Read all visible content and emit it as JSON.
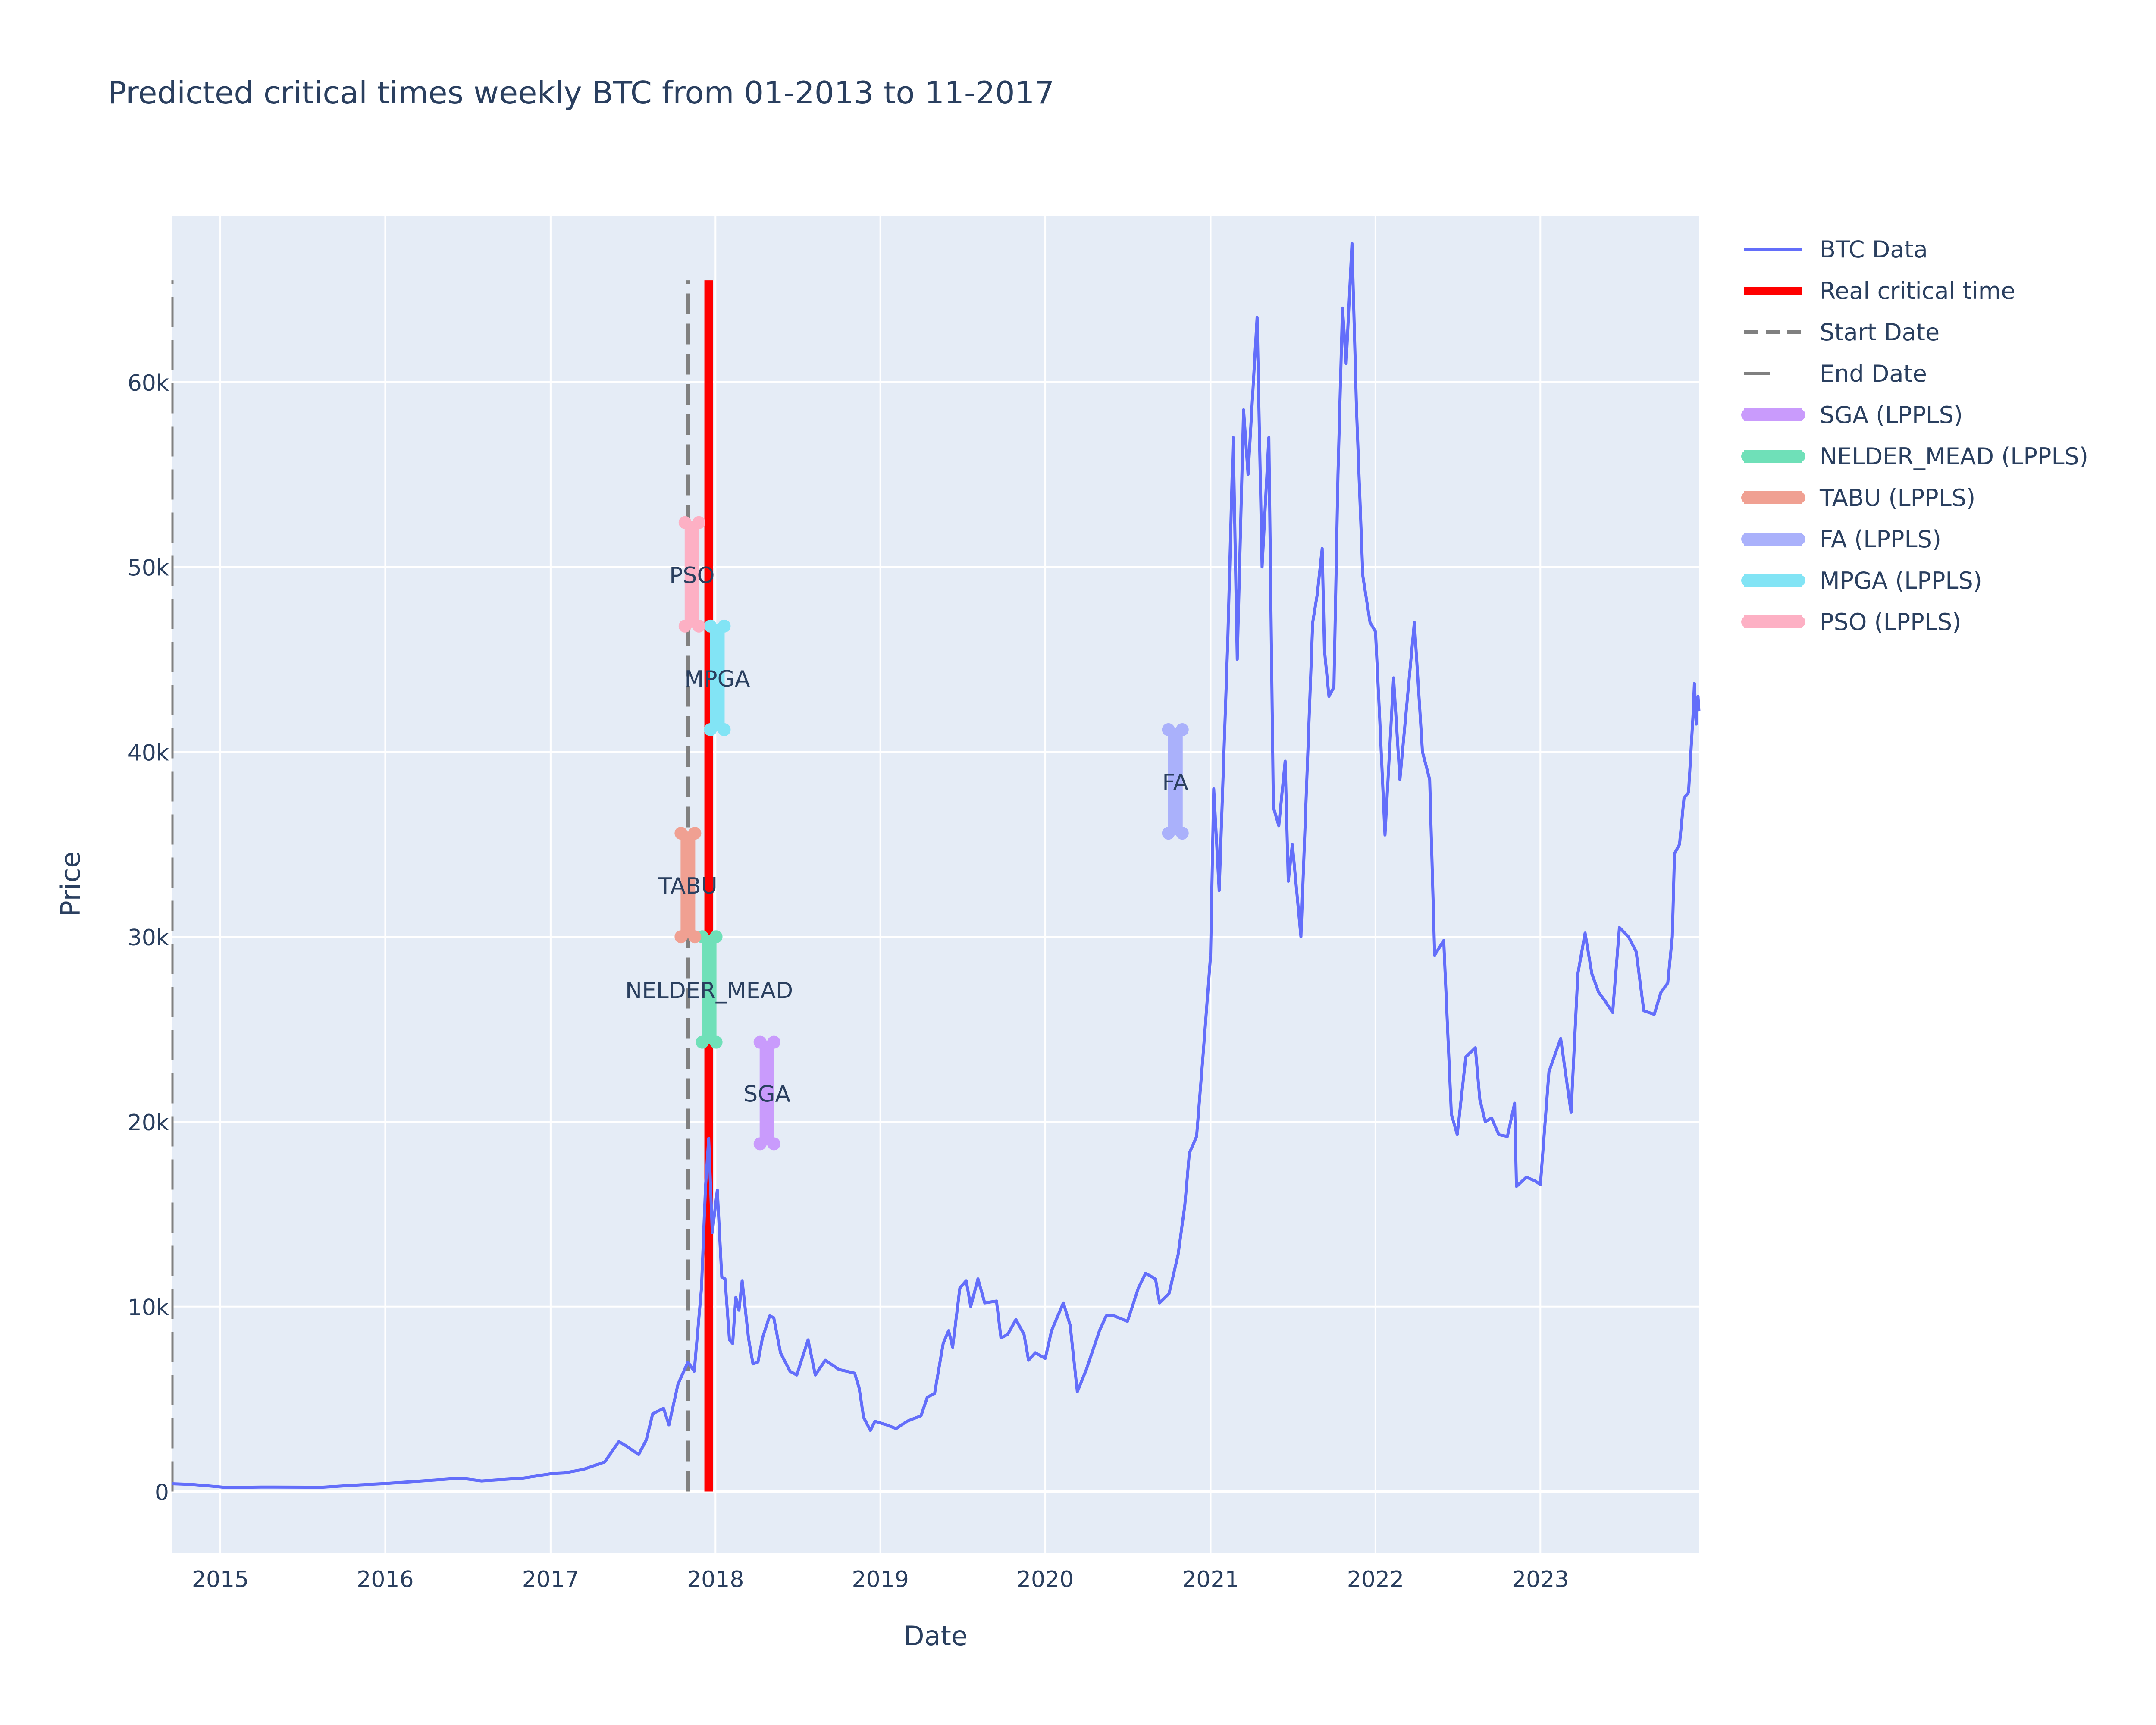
{
  "chart_data": {
    "type": "line",
    "title": "Predicted critical times weekly BTC from 01-2013 to 11-2017",
    "xlabel": "Date",
    "ylabel": "Price",
    "x_range": [
      "2014-09-17",
      "2023-12-18"
    ],
    "y_range": [
      -3300,
      69000
    ],
    "x_ticks": [
      {
        "value": "2015-01-01",
        "label": "2015"
      },
      {
        "value": "2016-01-01",
        "label": "2016"
      },
      {
        "value": "2017-01-01",
        "label": "2017"
      },
      {
        "value": "2018-01-01",
        "label": "2018"
      },
      {
        "value": "2019-01-01",
        "label": "2019"
      },
      {
        "value": "2020-01-01",
        "label": "2020"
      },
      {
        "value": "2021-01-01",
        "label": "2021"
      },
      {
        "value": "2022-01-01",
        "label": "2022"
      },
      {
        "value": "2023-01-01",
        "label": "2023"
      }
    ],
    "y_ticks": [
      {
        "value": 0,
        "label": "0"
      },
      {
        "value": 10000,
        "label": "10k"
      },
      {
        "value": 20000,
        "label": "20k"
      },
      {
        "value": 30000,
        "label": "30k"
      },
      {
        "value": 40000,
        "label": "40k"
      },
      {
        "value": 50000,
        "label": "50k"
      },
      {
        "value": 60000,
        "label": "60k"
      }
    ],
    "grid": true,
    "legend_position": "top-right",
    "colors": {
      "plot_bg": "#e5ecf6",
      "grid": "#ffffff",
      "btc": "#636efa",
      "real": "#ff0000",
      "dash": "#808080",
      "text": "#2a3f5f"
    },
    "series": [
      {
        "name": "BTC Data",
        "color": "#636efa",
        "points": [
          [
            "2014-09-17",
            420
          ],
          [
            "2014-11-01",
            380
          ],
          [
            "2015-01-15",
            215
          ],
          [
            "2015-04-01",
            240
          ],
          [
            "2015-08-15",
            230
          ],
          [
            "2015-11-05",
            360
          ],
          [
            "2016-01-01",
            430
          ],
          [
            "2016-06-17",
            720
          ],
          [
            "2016-08-01",
            570
          ],
          [
            "2016-11-01",
            720
          ],
          [
            "2017-01-01",
            960
          ],
          [
            "2017-02-01",
            1000
          ],
          [
            "2017-03-15",
            1200
          ],
          [
            "2017-05-01",
            1600
          ],
          [
            "2017-06-01",
            2700
          ],
          [
            "2017-06-15",
            2500
          ],
          [
            "2017-07-15",
            2000
          ],
          [
            "2017-08-01",
            2800
          ],
          [
            "2017-08-15",
            4200
          ],
          [
            "2017-09-08",
            4500
          ],
          [
            "2017-09-20",
            3600
          ],
          [
            "2017-10-10",
            5800
          ],
          [
            "2017-11-01",
            7000
          ],
          [
            "2017-11-15",
            6500
          ],
          [
            "2017-12-01",
            11000
          ],
          [
            "2017-12-10",
            16500
          ],
          [
            "2017-12-17",
            19100
          ],
          [
            "2017-12-25",
            14000
          ],
          [
            "2018-01-05",
            16300
          ],
          [
            "2018-01-15",
            11600
          ],
          [
            "2018-01-22",
            11500
          ],
          [
            "2018-02-01",
            8200
          ],
          [
            "2018-02-08",
            8000
          ],
          [
            "2018-02-15",
            10500
          ],
          [
            "2018-02-22",
            9800
          ],
          [
            "2018-03-01",
            11400
          ],
          [
            "2018-03-15",
            8300
          ],
          [
            "2018-03-25",
            6900
          ],
          [
            "2018-04-05",
            7000
          ],
          [
            "2018-04-15",
            8300
          ],
          [
            "2018-05-01",
            9500
          ],
          [
            "2018-05-10",
            9400
          ],
          [
            "2018-05-25",
            7500
          ],
          [
            "2018-06-15",
            6500
          ],
          [
            "2018-06-30",
            6300
          ],
          [
            "2018-07-25",
            8200
          ],
          [
            "2018-08-10",
            6300
          ],
          [
            "2018-09-01",
            7100
          ],
          [
            "2018-10-01",
            6600
          ],
          [
            "2018-11-05",
            6400
          ],
          [
            "2018-11-15",
            5600
          ],
          [
            "2018-11-25",
            4000
          ],
          [
            "2018-12-10",
            3300
          ],
          [
            "2018-12-20",
            3800
          ],
          [
            "2019-01-15",
            3600
          ],
          [
            "2019-02-05",
            3400
          ],
          [
            "2019-03-01",
            3800
          ],
          [
            "2019-04-01",
            4100
          ],
          [
            "2019-04-15",
            5100
          ],
          [
            "2019-05-01",
            5300
          ],
          [
            "2019-05-20",
            8000
          ],
          [
            "2019-06-01",
            8700
          ],
          [
            "2019-06-10",
            7800
          ],
          [
            "2019-06-26",
            11000
          ],
          [
            "2019-07-10",
            11400
          ],
          [
            "2019-07-20",
            10000
          ],
          [
            "2019-08-05",
            11500
          ],
          [
            "2019-08-20",
            10200
          ],
          [
            "2019-09-15",
            10300
          ],
          [
            "2019-09-25",
            8300
          ],
          [
            "2019-10-10",
            8500
          ],
          [
            "2019-10-28",
            9300
          ],
          [
            "2019-11-15",
            8500
          ],
          [
            "2019-11-25",
            7100
          ],
          [
            "2019-12-10",
            7500
          ],
          [
            "2020-01-01",
            7200
          ],
          [
            "2020-01-15",
            8700
          ],
          [
            "2020-02-10",
            10200
          ],
          [
            "2020-02-25",
            9000
          ],
          [
            "2020-03-12",
            5400
          ],
          [
            "2020-04-01",
            6600
          ],
          [
            "2020-04-30",
            8700
          ],
          [
            "2020-05-15",
            9500
          ],
          [
            "2020-06-01",
            9500
          ],
          [
            "2020-07-01",
            9200
          ],
          [
            "2020-07-25",
            11000
          ],
          [
            "2020-08-10",
            11800
          ],
          [
            "2020-09-01",
            11500
          ],
          [
            "2020-09-10",
            10200
          ],
          [
            "2020-10-01",
            10700
          ],
          [
            "2020-10-21",
            12800
          ],
          [
            "2020-11-05",
            15500
          ],
          [
            "2020-11-15",
            18300
          ],
          [
            "2020-12-01",
            19200
          ],
          [
            "2020-12-15",
            23500
          ],
          [
            "2021-01-01",
            29000
          ],
          [
            "2021-01-08",
            38000
          ],
          [
            "2021-01-20",
            32500
          ],
          [
            "2021-02-08",
            46000
          ],
          [
            "2021-02-20",
            57000
          ],
          [
            "2021-03-01",
            45000
          ],
          [
            "2021-03-15",
            58500
          ],
          [
            "2021-03-25",
            55000
          ],
          [
            "2021-04-14",
            63500
          ],
          [
            "2021-04-25",
            50000
          ],
          [
            "2021-05-10",
            57000
          ],
          [
            "2021-05-20",
            37000
          ],
          [
            "2021-06-01",
            36000
          ],
          [
            "2021-06-15",
            39500
          ],
          [
            "2021-06-22",
            33000
          ],
          [
            "2021-07-01",
            35000
          ],
          [
            "2021-07-20",
            30000
          ],
          [
            "2021-08-15",
            47000
          ],
          [
            "2021-08-25",
            48500
          ],
          [
            "2021-09-05",
            51000
          ],
          [
            "2021-09-10",
            45500
          ],
          [
            "2021-09-20",
            43000
          ],
          [
            "2021-10-01",
            43500
          ],
          [
            "2021-10-10",
            55000
          ],
          [
            "2021-10-20",
            64000
          ],
          [
            "2021-10-28",
            61000
          ],
          [
            "2021-11-10",
            67500
          ],
          [
            "2021-11-20",
            58500
          ],
          [
            "2021-12-04",
            49500
          ],
          [
            "2021-12-20",
            47000
          ],
          [
            "2022-01-01",
            46500
          ],
          [
            "2022-01-10",
            42000
          ],
          [
            "2022-01-22",
            35500
          ],
          [
            "2022-02-10",
            44000
          ],
          [
            "2022-02-24",
            38500
          ],
          [
            "2022-03-28",
            47000
          ],
          [
            "2022-04-15",
            40000
          ],
          [
            "2022-05-01",
            38500
          ],
          [
            "2022-05-12",
            29000
          ],
          [
            "2022-06-01",
            29800
          ],
          [
            "2022-06-18",
            20400
          ],
          [
            "2022-07-01",
            19300
          ],
          [
            "2022-07-20",
            23500
          ],
          [
            "2022-08-10",
            24000
          ],
          [
            "2022-08-20",
            21200
          ],
          [
            "2022-09-01",
            20000
          ],
          [
            "2022-09-15",
            20200
          ],
          [
            "2022-10-01",
            19300
          ],
          [
            "2022-10-20",
            19200
          ],
          [
            "2022-11-05",
            21000
          ],
          [
            "2022-11-09",
            16500
          ],
          [
            "2022-12-01",
            17000
          ],
          [
            "2022-12-20",
            16800
          ],
          [
            "2023-01-01",
            16600
          ],
          [
            "2023-01-20",
            22700
          ],
          [
            "2023-02-15",
            24500
          ],
          [
            "2023-03-10",
            20500
          ],
          [
            "2023-03-25",
            28000
          ],
          [
            "2023-04-10",
            30200
          ],
          [
            "2023-04-25",
            28000
          ],
          [
            "2023-05-10",
            27000
          ],
          [
            "2023-05-25",
            26500
          ],
          [
            "2023-06-10",
            25900
          ],
          [
            "2023-06-25",
            30500
          ],
          [
            "2023-07-15",
            30000
          ],
          [
            "2023-08-01",
            29200
          ],
          [
            "2023-08-18",
            26000
          ],
          [
            "2023-09-10",
            25800
          ],
          [
            "2023-09-25",
            27000
          ],
          [
            "2023-10-10",
            27500
          ],
          [
            "2023-10-20",
            30000
          ],
          [
            "2023-10-25",
            34500
          ],
          [
            "2023-11-05",
            35000
          ],
          [
            "2023-11-15",
            37500
          ],
          [
            "2023-11-25",
            37800
          ],
          [
            "2023-12-05",
            42000
          ],
          [
            "2023-12-08",
            43700
          ],
          [
            "2023-12-12",
            41500
          ],
          [
            "2023-12-16",
            43000
          ],
          [
            "2023-12-18",
            42200
          ]
        ]
      }
    ],
    "vertical_lines": [
      {
        "name": "Real critical time",
        "date": "2017-12-17",
        "y": [
          0,
          65500
        ],
        "color": "#ff0000",
        "style": "solid"
      },
      {
        "name": "Start Date",
        "date": "2017-11-01",
        "y": [
          0,
          65500
        ],
        "color": "#808080",
        "style": "dash"
      },
      {
        "name": "End Date",
        "date": "2014-09-17",
        "y": [
          0,
          65500
        ],
        "color": "#808080",
        "style": "longdash"
      }
    ],
    "predictions": [
      {
        "name": "SGA (LPPLS)",
        "label": "SGA",
        "date": "2018-04-25",
        "y_low": 18800,
        "y_high": 24300,
        "color": "#c99bfc"
      },
      {
        "name": "NELDER_MEAD (LPPLS)",
        "label": "NELDER_MEAD",
        "date": "2017-12-18",
        "y_low": 24300,
        "y_high": 30000,
        "color": "#6fe0b8"
      },
      {
        "name": "TABU (LPPLS)",
        "label": "TABU",
        "date": "2017-11-01",
        "y_low": 30000,
        "y_high": 35600,
        "color": "#f0a092"
      },
      {
        "name": "FA (LPPLS)",
        "label": "FA",
        "date": "2020-10-15",
        "y_low": 35600,
        "y_high": 41200,
        "color": "#aab1fb"
      },
      {
        "name": "MPGA (LPPLS)",
        "label": "MPGA",
        "date": "2018-01-05",
        "y_low": 41200,
        "y_high": 46800,
        "color": "#82e4f5"
      },
      {
        "name": "PSO (LPPLS)",
        "label": "PSO",
        "date": "2017-11-10",
        "y_low": 46800,
        "y_high": 52400,
        "color": "#fdb0c4"
      }
    ],
    "legend": [
      {
        "name": "BTC Data",
        "kind": "line",
        "color": "#636efa"
      },
      {
        "name": "Real critical time",
        "kind": "thick",
        "color": "#ff0000"
      },
      {
        "name": "Start Date",
        "kind": "dash",
        "color": "#808080"
      },
      {
        "name": "End Date",
        "kind": "longdash",
        "color": "#808080"
      },
      {
        "name": "SGA (LPPLS)",
        "kind": "band",
        "color": "#c99bfc"
      },
      {
        "name": "NELDER_MEAD (LPPLS)",
        "kind": "band",
        "color": "#6fe0b8"
      },
      {
        "name": "TABU (LPPLS)",
        "kind": "band",
        "color": "#f0a092"
      },
      {
        "name": "FA (LPPLS)",
        "kind": "band",
        "color": "#aab1fb"
      },
      {
        "name": "MPGA (LPPLS)",
        "kind": "band",
        "color": "#82e4f5"
      },
      {
        "name": "PSO (LPPLS)",
        "kind": "band",
        "color": "#fdb0c4"
      }
    ]
  }
}
